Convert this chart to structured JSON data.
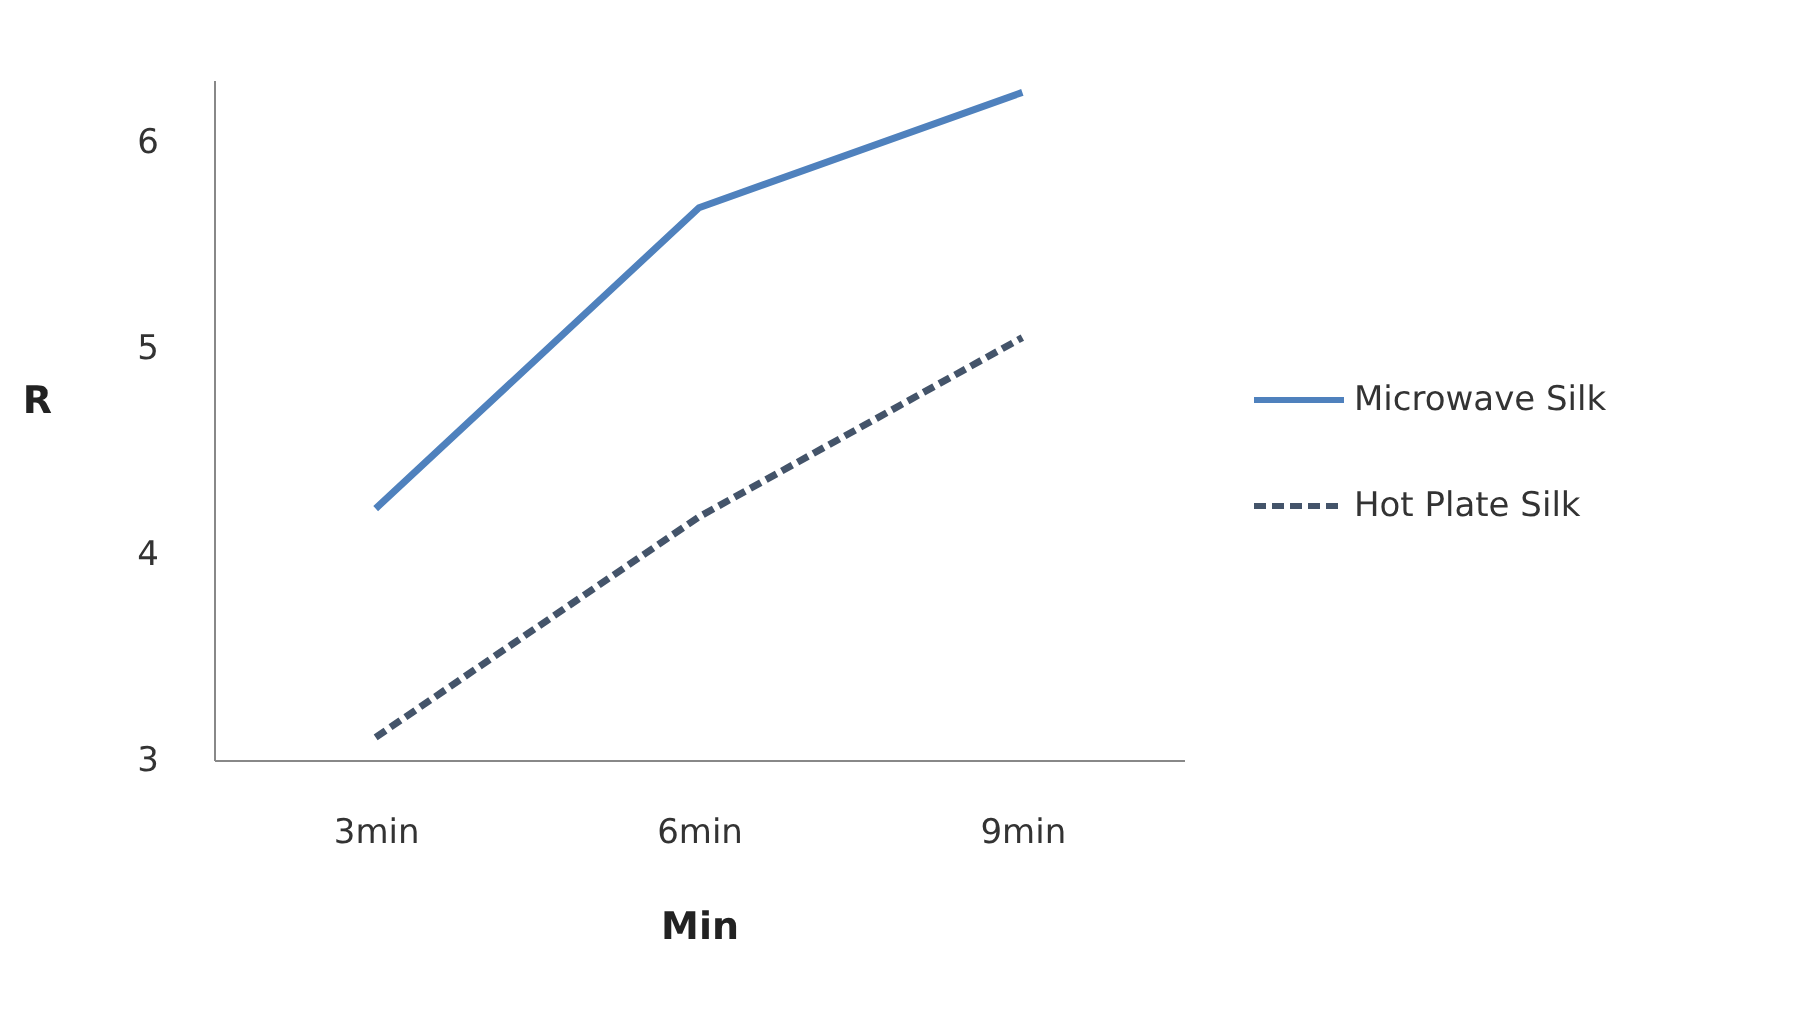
{
  "chart_data": {
    "type": "line",
    "xlabel": "Min",
    "ylabel": "R",
    "categories": [
      "3min",
      "6min",
      "9min"
    ],
    "series": [
      {
        "name": "Microwave Silk",
        "color": "#4f81bd",
        "values": [
          4.22,
          5.68,
          6.24
        ],
        "line_style": "solid"
      },
      {
        "name": "Hot Plate Silk",
        "color": "#44546a",
        "values": [
          3.11,
          4.18,
          5.05
        ],
        "line_style": "dashed"
      }
    ],
    "ylim": [
      3,
      6.3
    ],
    "yticks": [
      3,
      4,
      5,
      6
    ],
    "grid": false,
    "legend": "right",
    "marker": "none"
  }
}
